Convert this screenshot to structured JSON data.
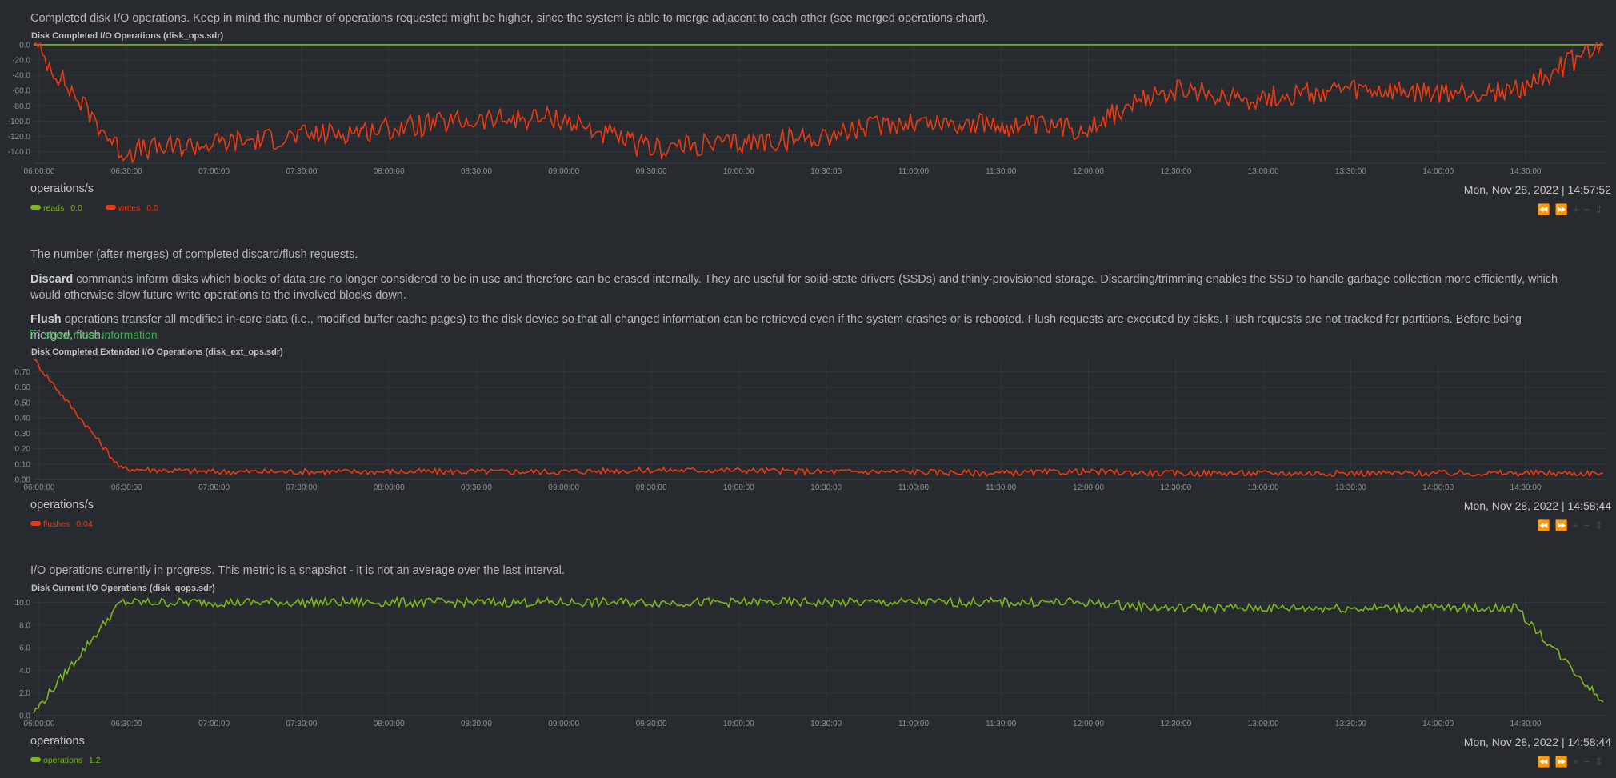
{
  "colors": {
    "reads": "#7cb61c",
    "writes": "#ea3a12",
    "flushes": "#ea3a12",
    "operations": "#7cb61c",
    "link": "#35b24b"
  },
  "charts": [
    {
      "description": "Completed disk I/O operations. Keep in mind the number of operations requested might be higher, since the system is able to merge adjacent to each other (see merged operations chart).",
      "title": "Disk Completed I/O Operations (disk_ops.sdr)",
      "units": "operations/s",
      "timestamp_date": "Mon, Nov 28, 2022",
      "timestamp_sep": "|",
      "timestamp_time": "14:57:52",
      "legend": [
        {
          "name": "reads",
          "value": "0.0",
          "color_key": "reads"
        },
        {
          "name": "writes",
          "value": "0.0",
          "color_key": "writes"
        }
      ]
    },
    {
      "description": "The number (after merges) of completed discard/flush requests.",
      "discard_label": "Discard",
      "discard_text": " commands inform disks which blocks of data are no longer considered to be in use and therefore can be erased internally. They are useful for solid-state drivers (SSDs) and thinly-provisioned storage. Discarding/trimming enables the SSD to handle garbage collection more efficiently, which would otherwise slow future write operations to the involved blocks down.",
      "flush_label": "Flush",
      "flush_text": " operations transfer all modified in-core data (i.e., modified buffer cache pages) to the disk device so that all changed information can be retrieved even if the system crashes or is rebooted. Flush requests are executed by disks. Flush requests are not tracked for partitions. Before being merged, flush...",
      "show_more": "show more information",
      "title": "Disk Completed Extended I/O Operations (disk_ext_ops.sdr)",
      "units": "operations/s",
      "timestamp_date": "Mon, Nov 28, 2022",
      "timestamp_sep": "|",
      "timestamp_time": "14:58:44",
      "legend": [
        {
          "name": "flushes",
          "value": "0.04",
          "color_key": "flushes"
        }
      ]
    },
    {
      "description": "I/O operations currently in progress. This metric is a snapshot - it is not an average over the last interval.",
      "title": "Disk Current I/O Operations (disk_qops.sdr)",
      "units": "operations",
      "timestamp_date": "Mon, Nov 28, 2022",
      "timestamp_sep": "|",
      "timestamp_time": "14:58:44",
      "legend": [
        {
          "name": "operations",
          "value": "1.2",
          "color_key": "operations"
        }
      ]
    }
  ],
  "toolbar_icons": [
    "rewind-icon",
    "fast-forward-icon",
    "zoom-in-icon",
    "zoom-out-icon",
    "resize-icon"
  ],
  "chart_data": [
    {
      "type": "line",
      "x": [
        "06:00:00",
        "06:30:00",
        "07:00:00",
        "07:30:00",
        "08:00:00",
        "08:30:00",
        "09:00:00",
        "09:30:00",
        "10:00:00",
        "10:30:00",
        "11:00:00",
        "11:30:00",
        "12:00:00",
        "12:30:00",
        "13:00:00",
        "13:30:00",
        "14:00:00",
        "14:30:00",
        "14:57:00"
      ],
      "series": [
        {
          "name": "reads",
          "values": [
            0,
            0,
            0,
            0,
            0,
            0,
            0,
            0,
            0,
            0,
            0,
            0,
            0,
            0,
            0,
            0,
            0,
            0,
            0
          ]
        },
        {
          "name": "writes",
          "values": [
            0,
            -140,
            -130,
            -120,
            -110,
            -100,
            -95,
            -135,
            -130,
            -120,
            -100,
            -105,
            -110,
            -60,
            -70,
            -60,
            -65,
            -60,
            0
          ]
        }
      ],
      "yticks": [
        "0.0",
        "-20.0",
        "-40.0",
        "-60.0",
        "-80.0",
        "-100.0",
        "-120.0",
        "-140.0"
      ],
      "ylim": [
        -155,
        2
      ]
    },
    {
      "type": "line",
      "x": [
        "06:00:00",
        "06:30:00",
        "07:00:00",
        "07:30:00",
        "08:00:00",
        "08:30:00",
        "09:00:00",
        "09:30:00",
        "10:00:00",
        "10:30:00",
        "11:00:00",
        "11:30:00",
        "12:00:00",
        "12:30:00",
        "13:00:00",
        "13:30:00",
        "14:00:00",
        "14:30:00",
        "14:58:00"
      ],
      "series": [
        {
          "name": "flushes",
          "values": [
            0.78,
            0.07,
            0.05,
            0.05,
            0.05,
            0.05,
            0.05,
            0.06,
            0.06,
            0.05,
            0.05,
            0.04,
            0.05,
            0.04,
            0.04,
            0.04,
            0.04,
            0.04,
            0.04
          ]
        }
      ],
      "yticks": [
        "0.00",
        "0.10",
        "0.20",
        "0.30",
        "0.40",
        "0.50",
        "0.60",
        "0.70"
      ],
      "ylim": [
        0,
        0.78
      ]
    },
    {
      "type": "line",
      "x": [
        "06:00:00",
        "06:30:00",
        "07:00:00",
        "07:30:00",
        "08:00:00",
        "08:30:00",
        "09:00:00",
        "09:30:00",
        "10:00:00",
        "10:30:00",
        "11:00:00",
        "11:30:00",
        "12:00:00",
        "12:30:00",
        "13:00:00",
        "13:30:00",
        "14:00:00",
        "14:30:00",
        "14:58:00"
      ],
      "series": [
        {
          "name": "operations",
          "values": [
            0.2,
            10,
            10,
            10,
            10,
            10,
            10,
            10,
            10,
            10,
            10,
            10,
            10,
            9.5,
            9.5,
            9.5,
            9.5,
            9.5,
            1.2
          ]
        }
      ],
      "yticks": [
        "0.0",
        "2.0",
        "4.0",
        "6.0",
        "8.0",
        "10.0"
      ],
      "ylim": [
        0,
        10.6
      ]
    }
  ]
}
